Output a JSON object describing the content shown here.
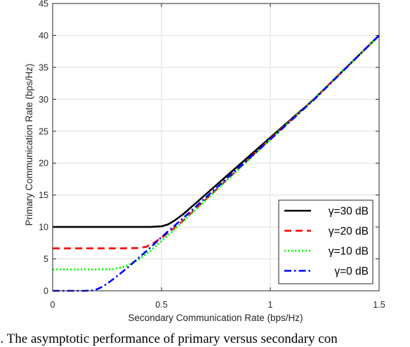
{
  "caption": "c.   The asymptotic performance of primary versus secondary con",
  "chart_data": {
    "type": "line",
    "title": "",
    "xlabel": "Secondary Communication Rate (bps/Hz)",
    "ylabel": "Primary Communication Rate (bps/Hz)",
    "xlim": [
      0,
      1.5
    ],
    "ylim": [
      0,
      45
    ],
    "xticks": [
      0,
      0.5,
      1,
      1.5
    ],
    "xtick_labels": [
      "0",
      "0.5",
      "1",
      "1.5"
    ],
    "yticks": [
      0,
      5,
      10,
      15,
      20,
      25,
      30,
      35,
      40,
      45
    ],
    "ytick_labels": [
      "0",
      "5",
      "10",
      "15",
      "20",
      "25",
      "30",
      "35",
      "40",
      "45"
    ],
    "grid": true,
    "legend_position": "bottom-right",
    "series": [
      {
        "name": "γ=30 dB",
        "color": "#000000",
        "style": "solid",
        "x": [
          0,
          0.3,
          0.45,
          0.5,
          0.53,
          0.56,
          0.6,
          0.65,
          0.7,
          0.8,
          1.0,
          1.2,
          1.5
        ],
        "y": [
          10,
          10,
          10,
          10.1,
          10.4,
          11.0,
          12.0,
          13.5,
          15.0,
          18.0,
          24.0,
          30.0,
          40.0
        ]
      },
      {
        "name": "γ=20 dB",
        "color": "#ff0000",
        "style": "dashed",
        "x": [
          0,
          0.3,
          0.4,
          0.43,
          0.46,
          0.5,
          0.55,
          0.6,
          0.7,
          0.8,
          1.0,
          1.2,
          1.5
        ],
        "y": [
          6.65,
          6.65,
          6.7,
          6.9,
          7.4,
          8.3,
          9.6,
          11.0,
          14.2,
          17.4,
          23.8,
          30.0,
          40.0
        ]
      },
      {
        "name": "γ=10 dB",
        "color": "#00ff00",
        "style": "dotted",
        "x": [
          0,
          0.2,
          0.28,
          0.32,
          0.35,
          0.4,
          0.45,
          0.5,
          0.55,
          0.6,
          0.7,
          0.8,
          1.0,
          1.2,
          1.5
        ],
        "y": [
          3.35,
          3.35,
          3.4,
          3.7,
          4.1,
          5.0,
          6.3,
          7.8,
          9.3,
          10.9,
          14.1,
          17.3,
          23.7,
          30.0,
          40.0
        ]
      },
      {
        "name": "γ=0 dB",
        "color": "#0000ff",
        "style": "dashdot",
        "x": [
          0,
          0.15,
          0.18,
          0.2,
          0.22,
          0.25,
          0.3,
          0.35,
          0.4,
          0.45,
          0.5,
          0.55,
          0.6,
          0.7,
          0.8,
          1.0,
          1.2,
          1.5
        ],
        "y": [
          0,
          0,
          0.05,
          0.2,
          0.5,
          1.1,
          2.4,
          3.8,
          5.3,
          6.8,
          8.4,
          9.9,
          11.4,
          14.5,
          17.6,
          23.7,
          29.9,
          40.0
        ]
      }
    ]
  }
}
